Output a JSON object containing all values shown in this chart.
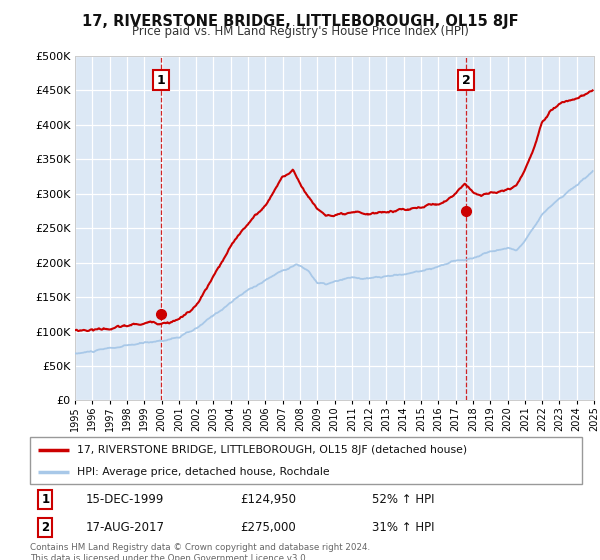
{
  "title": "17, RIVERSTONE BRIDGE, LITTLEBOROUGH, OL15 8JF",
  "subtitle": "Price paid vs. HM Land Registry's House Price Index (HPI)",
  "legend_line1": "17, RIVERSTONE BRIDGE, LITTLEBOROUGH, OL15 8JF (detached house)",
  "legend_line2": "HPI: Average price, detached house, Rochdale",
  "annotation1_label": "1",
  "annotation1_date": "15-DEC-1999",
  "annotation1_price": "£124,950",
  "annotation1_hpi": "52% ↑ HPI",
  "annotation2_label": "2",
  "annotation2_date": "17-AUG-2017",
  "annotation2_price": "£275,000",
  "annotation2_hpi": "31% ↑ HPI",
  "footnote": "Contains HM Land Registry data © Crown copyright and database right 2024.\nThis data is licensed under the Open Government Licence v3.0.",
  "sale1_x": 1999.96,
  "sale1_y": 124950,
  "sale2_x": 2017.62,
  "sale2_y": 275000,
  "hpi_color": "#a8c8e8",
  "price_color": "#cc0000",
  "marker_color": "#cc0000",
  "vline_color": "#cc0000",
  "bg_color": "#dce8f5",
  "grid_color": "#ffffff",
  "ylim": [
    0,
    500000
  ],
  "xlim": [
    1995,
    2025
  ],
  "xlabel_years": [
    1995,
    1996,
    1997,
    1998,
    1999,
    2000,
    2001,
    2002,
    2003,
    2004,
    2005,
    2006,
    2007,
    2008,
    2009,
    2010,
    2011,
    2012,
    2013,
    2014,
    2015,
    2016,
    2017,
    2018,
    2019,
    2020,
    2021,
    2022,
    2023,
    2024,
    2025
  ]
}
